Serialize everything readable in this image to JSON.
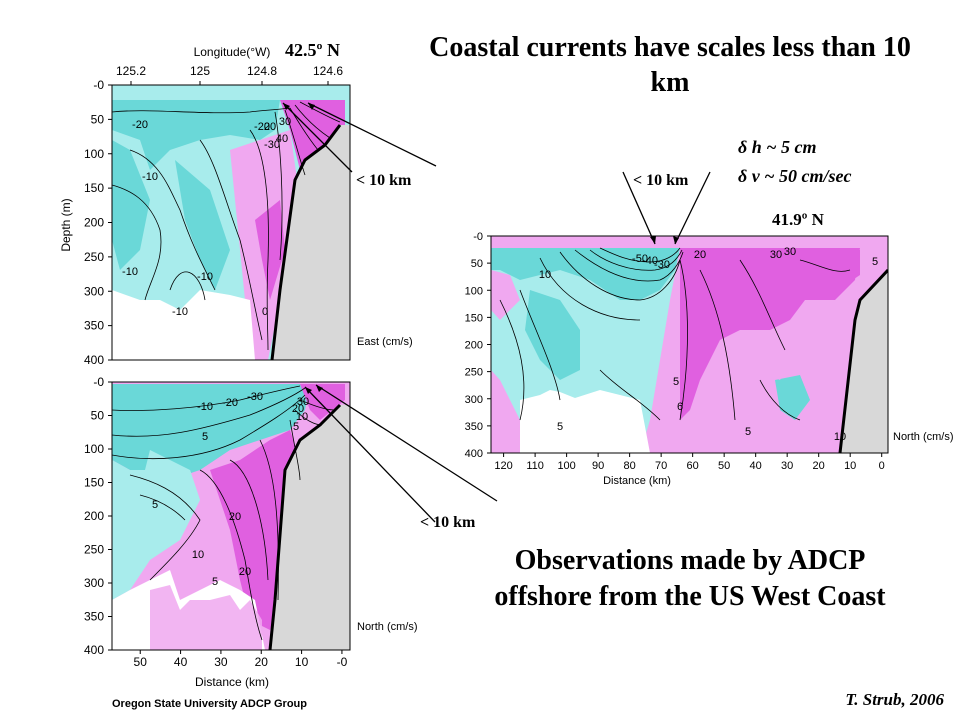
{
  "title": "Coastal currents have scales less than 10 km",
  "observations": "Observations made by ADCP offshore from the US West Coast",
  "credit": "T. Strub, 2006",
  "group": "Oregon State University ADCP Group",
  "lat_left": "42.5º N",
  "lat_right": "41.9º N",
  "km_label": "< 10 km",
  "dh": "δ h ~ 5 cm",
  "dv": "δ v ~ 50 cm/sec",
  "colors": {
    "cyan_dark": "#6ad8d8",
    "cyan_light": "#a8ecec",
    "magenta_dark": "#e060e0",
    "magenta_light": "#f0a8f0",
    "land": "#d8d8d8"
  },
  "chart_data": [
    {
      "type": "heatmap",
      "name": "East",
      "legend": "East (cm/s)",
      "xlabel": "Longitude(°W)",
      "x_ticks": [
        "125.2",
        "125",
        "124.8",
        "124.6"
      ],
      "ylabel": "Depth (m)",
      "y_ticks": [
        "-0",
        "50",
        "100",
        "150",
        "200",
        "250",
        "300",
        "350",
        "400"
      ],
      "ylim": [
        0,
        400
      ],
      "contour_labels": [
        "-20",
        "-10",
        "-10",
        "-10",
        "-10",
        "20",
        "30",
        "40",
        "-20",
        "-30",
        "0"
      ]
    },
    {
      "type": "heatmap",
      "name": "North",
      "legend": "North (cm/s)",
      "xlabel": "Distance (km)",
      "x_ticks": [
        "50",
        "40",
        "30",
        "20",
        "10",
        "-0"
      ],
      "xlim": [
        57,
        -2
      ],
      "y_ticks": [
        "-0",
        "50",
        "100",
        "150",
        "200",
        "250",
        "300",
        "350",
        "400"
      ],
      "ylim": [
        0,
        400
      ],
      "contour_labels": [
        "-30",
        "-20",
        "-10",
        "5",
        "5",
        "5",
        "10",
        "20",
        "20",
        "5",
        "10",
        "20",
        "30"
      ]
    },
    {
      "type": "heatmap",
      "name": "North (cm/s) 41.9N",
      "legend": "North (cm/s)",
      "xlabel": "Distance (km)",
      "x_ticks": [
        "120",
        "110",
        "100",
        "90",
        "80",
        "70",
        "60",
        "50",
        "40",
        "30",
        "20",
        "10",
        "0"
      ],
      "xlim": [
        124,
        -2
      ],
      "y_ticks": [
        "-0",
        "50",
        "100",
        "150",
        "200",
        "250",
        "300",
        "350",
        "400"
      ],
      "ylim": [
        0,
        400
      ],
      "contour_labels": [
        "10",
        "-50",
        "-40",
        "-30",
        "20",
        "30",
        "5",
        "10",
        "5",
        "5",
        "5",
        "6",
        "30"
      ]
    }
  ]
}
